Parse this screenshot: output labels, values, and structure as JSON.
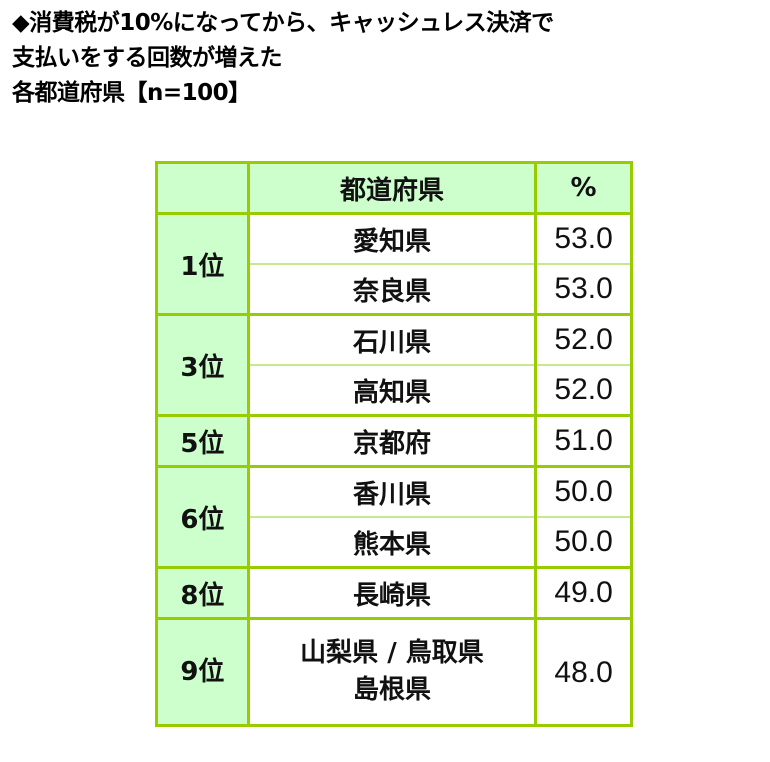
{
  "title": {
    "line1": "◆消費税が10%になってから、キャッシュレス決済で",
    "line2": "支払いをする回数が増えた",
    "line3": "各都道府県【n=100】"
  },
  "table": {
    "headers": [
      "",
      "都道府県",
      "%"
    ],
    "rows": [
      {
        "rank": "1位",
        "pref": "愛知県",
        "value": "53.0"
      },
      {
        "rank": "",
        "pref": "奈良県",
        "value": "53.0"
      },
      {
        "rank": "3位",
        "pref": "石川県",
        "value": "52.0"
      },
      {
        "rank": "",
        "pref": "高知県",
        "value": "52.0"
      },
      {
        "rank": "5位",
        "pref": "京都府",
        "value": "51.0"
      },
      {
        "rank": "6位",
        "pref": "香川県",
        "value": "50.0"
      },
      {
        "rank": "",
        "pref": "熊本県",
        "value": "50.0"
      },
      {
        "rank": "8位",
        "pref": "長崎県",
        "value": "49.0"
      },
      {
        "rank": "9位",
        "pref": "山梨県 / 鳥取県",
        "pref2": "島根県",
        "value": "48.0"
      }
    ]
  },
  "colors": {
    "border": "#99cc00",
    "header_fill": "#ccffcc"
  }
}
